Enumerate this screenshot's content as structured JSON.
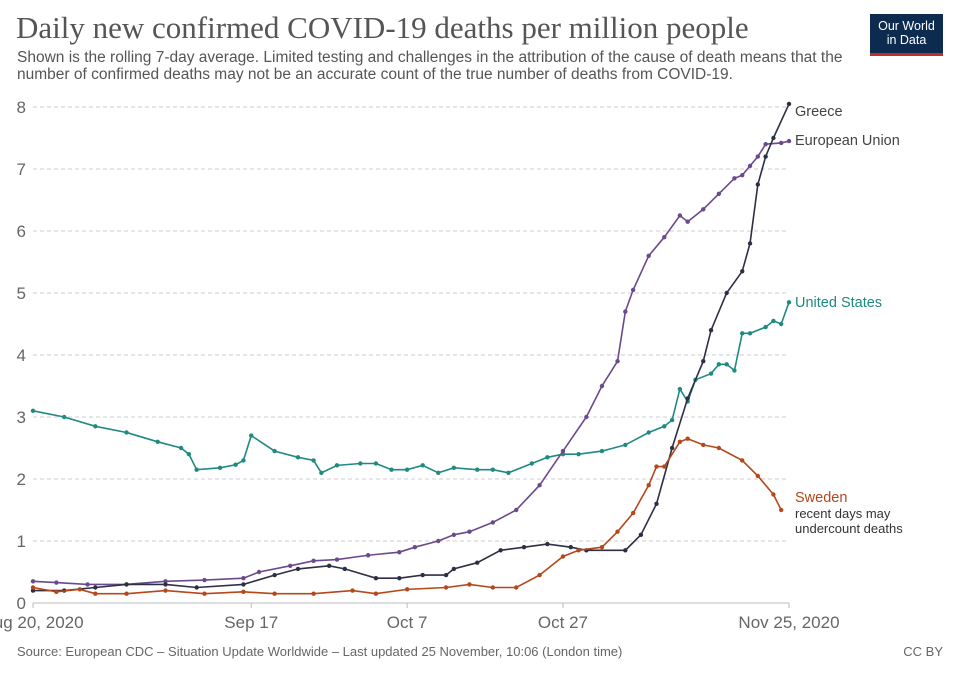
{
  "title": "Daily new confirmed COVID-19 deaths per million people",
  "subtitle": "Shown is the rolling 7-day average. Limited testing and challenges in the attribution of the cause of death means that the number of confirmed deaths may not be an accurate count of the true number of deaths from COVID-19.",
  "logo": {
    "line1": "Our World",
    "line2": "in Data",
    "color": "#0d2a4f",
    "accent": "#c32b2b"
  },
  "source": "Source: European CDC – Situation Update Worldwide – Last updated 25 November, 10:06 (London time)",
  "license": "CC BY",
  "chart_data": {
    "type": "line",
    "title": "Daily new confirmed COVID-19 deaths per million people",
    "xlim": [
      "2020-08-20",
      "2020-11-25"
    ],
    "ylim": [
      0,
      8
    ],
    "grid": true,
    "legend": "right, inline labels at line ends",
    "x_ticks": [
      {
        "date": "2020-08-20",
        "label": "Aug 20, 2020"
      },
      {
        "date": "2020-09-17",
        "label": "Sep 17"
      },
      {
        "date": "2020-10-07",
        "label": "Oct 7"
      },
      {
        "date": "2020-10-27",
        "label": "Oct 27"
      },
      {
        "date": "2020-11-25",
        "label": "Nov 25, 2020"
      }
    ],
    "y_ticks": [
      "0",
      "1",
      "2",
      "3",
      "4",
      "5",
      "6",
      "7",
      "8"
    ],
    "series": [
      {
        "name": "United States",
        "color": "#1f8a80",
        "points": [
          [
            "2020-08-20",
            3.1
          ],
          [
            "2020-08-24",
            3.0
          ],
          [
            "2020-08-28",
            2.85
          ],
          [
            "2020-09-01",
            2.75
          ],
          [
            "2020-09-05",
            2.6
          ],
          [
            "2020-09-08",
            2.5
          ],
          [
            "2020-09-09",
            2.4
          ],
          [
            "2020-09-10",
            2.15
          ],
          [
            "2020-09-13",
            2.18
          ],
          [
            "2020-09-15",
            2.23
          ],
          [
            "2020-09-16",
            2.3
          ],
          [
            "2020-09-17",
            2.7
          ],
          [
            "2020-09-20",
            2.45
          ],
          [
            "2020-09-23",
            2.35
          ],
          [
            "2020-09-25",
            2.3
          ],
          [
            "2020-09-26",
            2.1
          ],
          [
            "2020-09-28",
            2.22
          ],
          [
            "2020-10-01",
            2.25
          ],
          [
            "2020-10-03",
            2.25
          ],
          [
            "2020-10-05",
            2.15
          ],
          [
            "2020-10-07",
            2.15
          ],
          [
            "2020-10-09",
            2.22
          ],
          [
            "2020-10-11",
            2.1
          ],
          [
            "2020-10-13",
            2.18
          ],
          [
            "2020-10-16",
            2.15
          ],
          [
            "2020-10-18",
            2.15
          ],
          [
            "2020-10-20",
            2.1
          ],
          [
            "2020-10-23",
            2.25
          ],
          [
            "2020-10-25",
            2.35
          ],
          [
            "2020-10-27",
            2.4
          ],
          [
            "2020-10-29",
            2.4
          ],
          [
            "2020-11-01",
            2.45
          ],
          [
            "2020-11-04",
            2.55
          ],
          [
            "2020-11-07",
            2.75
          ],
          [
            "2020-11-09",
            2.85
          ],
          [
            "2020-11-10",
            2.95
          ],
          [
            "2020-11-11",
            3.45
          ],
          [
            "2020-11-12",
            3.25
          ],
          [
            "2020-11-13",
            3.6
          ],
          [
            "2020-11-15",
            3.7
          ],
          [
            "2020-11-16",
            3.85
          ],
          [
            "2020-11-17",
            3.85
          ],
          [
            "2020-11-18",
            3.75
          ],
          [
            "2020-11-19",
            4.35
          ],
          [
            "2020-11-20",
            4.35
          ],
          [
            "2020-11-22",
            4.45
          ],
          [
            "2020-11-23",
            4.55
          ],
          [
            "2020-11-24",
            4.5
          ],
          [
            "2020-11-25",
            4.85
          ]
        ]
      },
      {
        "name": "European Union",
        "color": "#6a4a8c",
        "points": [
          [
            "2020-08-20",
            0.35
          ],
          [
            "2020-08-23",
            0.33
          ],
          [
            "2020-08-27",
            0.3
          ],
          [
            "2020-09-01",
            0.3
          ],
          [
            "2020-09-06",
            0.35
          ],
          [
            "2020-09-11",
            0.37
          ],
          [
            "2020-09-16",
            0.4
          ],
          [
            "2020-09-18",
            0.5
          ],
          [
            "2020-09-22",
            0.6
          ],
          [
            "2020-09-25",
            0.68
          ],
          [
            "2020-09-28",
            0.7
          ],
          [
            "2020-10-02",
            0.77
          ],
          [
            "2020-10-06",
            0.82
          ],
          [
            "2020-10-08",
            0.9
          ],
          [
            "2020-10-11",
            1.0
          ],
          [
            "2020-10-13",
            1.1
          ],
          [
            "2020-10-15",
            1.15
          ],
          [
            "2020-10-18",
            1.3
          ],
          [
            "2020-10-21",
            1.5
          ],
          [
            "2020-10-24",
            1.9
          ],
          [
            "2020-10-27",
            2.45
          ],
          [
            "2020-10-30",
            3.0
          ],
          [
            "2020-11-01",
            3.5
          ],
          [
            "2020-11-03",
            3.9
          ],
          [
            "2020-11-04",
            4.7
          ],
          [
            "2020-11-05",
            5.05
          ],
          [
            "2020-11-07",
            5.6
          ],
          [
            "2020-11-09",
            5.9
          ],
          [
            "2020-11-11",
            6.25
          ],
          [
            "2020-11-12",
            6.15
          ],
          [
            "2020-11-14",
            6.35
          ],
          [
            "2020-11-16",
            6.6
          ],
          [
            "2020-11-18",
            6.85
          ],
          [
            "2020-11-19",
            6.9
          ],
          [
            "2020-11-20",
            7.05
          ],
          [
            "2020-11-21",
            7.2
          ],
          [
            "2020-11-22",
            7.4
          ],
          [
            "2020-11-24",
            7.42
          ],
          [
            "2020-11-25",
            7.45
          ]
        ]
      },
      {
        "name": "Greece",
        "color": "#2e2e45",
        "points": [
          [
            "2020-08-20",
            0.2
          ],
          [
            "2020-08-24",
            0.2
          ],
          [
            "2020-08-28",
            0.25
          ],
          [
            "2020-09-01",
            0.3
          ],
          [
            "2020-09-06",
            0.3
          ],
          [
            "2020-09-10",
            0.25
          ],
          [
            "2020-09-16",
            0.3
          ],
          [
            "2020-09-20",
            0.45
          ],
          [
            "2020-09-23",
            0.55
          ],
          [
            "2020-09-27",
            0.6
          ],
          [
            "2020-09-29",
            0.55
          ],
          [
            "2020-10-03",
            0.4
          ],
          [
            "2020-10-06",
            0.4
          ],
          [
            "2020-10-09",
            0.45
          ],
          [
            "2020-10-12",
            0.45
          ],
          [
            "2020-10-13",
            0.55
          ],
          [
            "2020-10-16",
            0.65
          ],
          [
            "2020-10-19",
            0.85
          ],
          [
            "2020-10-22",
            0.9
          ],
          [
            "2020-10-25",
            0.95
          ],
          [
            "2020-10-28",
            0.9
          ],
          [
            "2020-10-30",
            0.85
          ],
          [
            "2020-11-04",
            0.85
          ],
          [
            "2020-11-06",
            1.1
          ],
          [
            "2020-11-08",
            1.6
          ],
          [
            "2020-11-10",
            2.5
          ],
          [
            "2020-11-12",
            3.3
          ],
          [
            "2020-11-14",
            3.9
          ],
          [
            "2020-11-15",
            4.4
          ],
          [
            "2020-11-17",
            5.0
          ],
          [
            "2020-11-19",
            5.35
          ],
          [
            "2020-11-20",
            5.8
          ],
          [
            "2020-11-21",
            6.75
          ],
          [
            "2020-11-22",
            7.2
          ],
          [
            "2020-11-23",
            7.5
          ],
          [
            "2020-11-25",
            8.05
          ]
        ]
      },
      {
        "name": "Sweden",
        "note": "recent days may undercount deaths",
        "color": "#b5471a",
        "points": [
          [
            "2020-08-20",
            0.25
          ],
          [
            "2020-08-23",
            0.18
          ],
          [
            "2020-08-26",
            0.22
          ],
          [
            "2020-08-28",
            0.15
          ],
          [
            "2020-09-01",
            0.15
          ],
          [
            "2020-09-06",
            0.2
          ],
          [
            "2020-09-11",
            0.15
          ],
          [
            "2020-09-16",
            0.18
          ],
          [
            "2020-09-20",
            0.15
          ],
          [
            "2020-09-25",
            0.15
          ],
          [
            "2020-09-30",
            0.2
          ],
          [
            "2020-10-03",
            0.15
          ],
          [
            "2020-10-07",
            0.22
          ],
          [
            "2020-10-12",
            0.25
          ],
          [
            "2020-10-15",
            0.3
          ],
          [
            "2020-10-18",
            0.25
          ],
          [
            "2020-10-21",
            0.25
          ],
          [
            "2020-10-24",
            0.45
          ],
          [
            "2020-10-27",
            0.75
          ],
          [
            "2020-10-29",
            0.85
          ],
          [
            "2020-11-01",
            0.9
          ],
          [
            "2020-11-03",
            1.15
          ],
          [
            "2020-11-05",
            1.45
          ],
          [
            "2020-11-07",
            1.9
          ],
          [
            "2020-11-08",
            2.2
          ],
          [
            "2020-11-09",
            2.2
          ],
          [
            "2020-11-11",
            2.6
          ],
          [
            "2020-11-12",
            2.65
          ],
          [
            "2020-11-14",
            2.55
          ],
          [
            "2020-11-16",
            2.5
          ],
          [
            "2020-11-19",
            2.3
          ],
          [
            "2020-11-21",
            2.05
          ],
          [
            "2020-11-23",
            1.75
          ],
          [
            "2020-11-24",
            1.5
          ]
        ]
      }
    ]
  }
}
